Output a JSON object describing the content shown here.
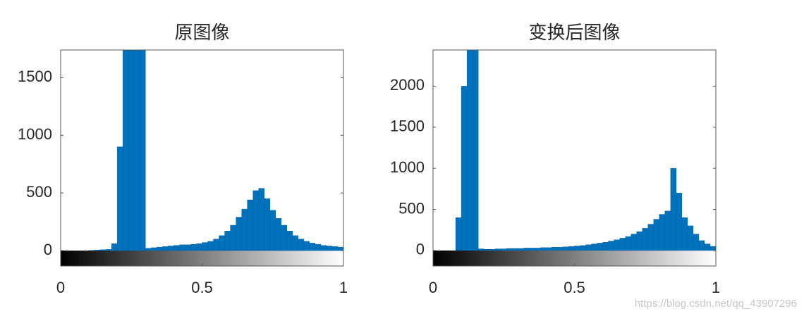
{
  "chart_data": [
    {
      "type": "histogram",
      "title": "原图像",
      "color": "#0072bd",
      "bins": [
        0,
        0.02,
        0.04,
        0.06,
        0.08,
        0.1,
        0.12,
        0.14,
        0.16,
        0.18,
        0.2,
        0.22,
        0.24,
        0.26,
        0.28,
        0.3,
        0.32,
        0.34,
        0.36,
        0.38,
        0.4,
        0.42,
        0.44,
        0.46,
        0.48,
        0.5,
        0.52,
        0.54,
        0.56,
        0.58,
        0.6,
        0.62,
        0.64,
        0.66,
        0.68,
        0.7,
        0.72,
        0.74,
        0.76,
        0.78,
        0.8,
        0.82,
        0.84,
        0.86,
        0.88,
        0.9,
        0.92,
        0.94,
        0.96,
        0.98,
        1
      ],
      "values": [
        0,
        0,
        0,
        0,
        0,
        2,
        5,
        8,
        10,
        60,
        900,
        1750,
        1900,
        1800,
        1900,
        20,
        25,
        30,
        35,
        40,
        45,
        50,
        50,
        55,
        60,
        70,
        80,
        100,
        130,
        170,
        220,
        290,
        360,
        440,
        520,
        540,
        450,
        350,
        280,
        220,
        170,
        130,
        100,
        80,
        65,
        55,
        45,
        40,
        35,
        30
      ],
      "xlim": [
        0,
        1
      ],
      "xticks": [
        0,
        0.5,
        1
      ],
      "ylim": [
        -134,
        1740
      ],
      "yticks": [
        0,
        500,
        1000,
        1500
      ]
    },
    {
      "type": "histogram",
      "title": "变换后图像",
      "color": "#0072bd",
      "bins": [
        0,
        0.02,
        0.04,
        0.06,
        0.08,
        0.1,
        0.12,
        0.14,
        0.16,
        0.18,
        0.2,
        0.22,
        0.24,
        0.26,
        0.28,
        0.3,
        0.32,
        0.34,
        0.36,
        0.38,
        0.4,
        0.42,
        0.44,
        0.46,
        0.48,
        0.5,
        0.52,
        0.54,
        0.56,
        0.58,
        0.6,
        0.62,
        0.64,
        0.66,
        0.68,
        0.7,
        0.72,
        0.74,
        0.76,
        0.78,
        0.8,
        0.82,
        0.84,
        0.86,
        0.88,
        0.9,
        0.92,
        0.94,
        0.96,
        0.98,
        1
      ],
      "values": [
        0,
        0,
        0,
        0,
        400,
        2000,
        2600,
        2600,
        20,
        15,
        15,
        20,
        20,
        25,
        25,
        25,
        30,
        30,
        30,
        35,
        35,
        40,
        40,
        45,
        50,
        55,
        60,
        70,
        80,
        90,
        100,
        115,
        130,
        150,
        170,
        200,
        230,
        270,
        320,
        380,
        440,
        480,
        1000,
        700,
        400,
        300,
        200,
        120,
        80,
        50
      ],
      "xlim": [
        0,
        1
      ],
      "xticks": [
        0,
        0.5,
        1
      ],
      "ylim": [
        -189,
        2440
      ],
      "yticks": [
        0,
        500,
        1000,
        1500,
        2000
      ]
    }
  ],
  "watermark": "https://blog.csdn.net/qq_43907296"
}
